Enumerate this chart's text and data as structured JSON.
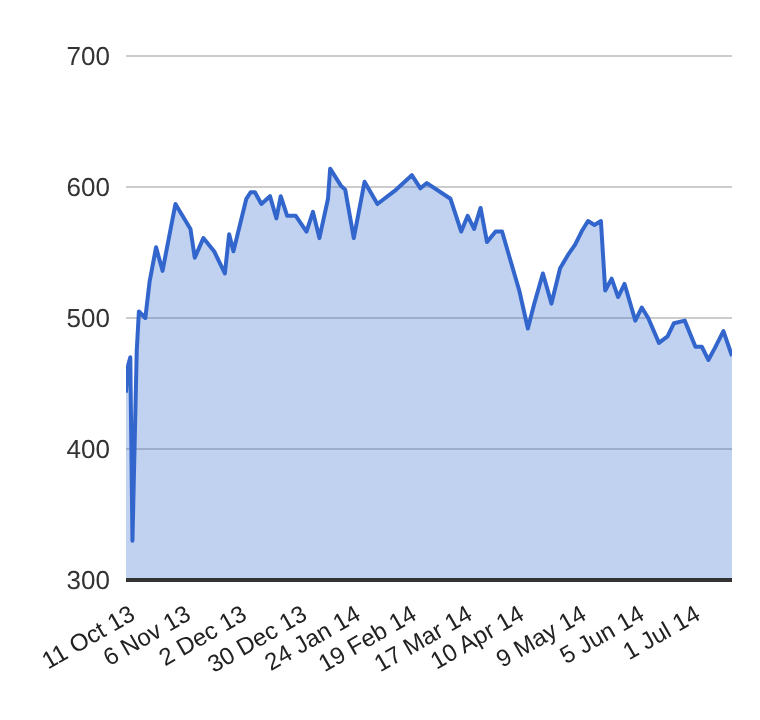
{
  "chart_data": {
    "type": "area",
    "x": [
      "2013-10-10",
      "2013-10-11",
      "2013-10-12",
      "2013-10-13",
      "2013-10-15",
      "2013-10-16",
      "2013-10-19",
      "2013-10-21",
      "2013-10-24",
      "2013-10-27",
      "2013-11-02",
      "2013-11-09",
      "2013-11-11",
      "2013-11-15",
      "2013-11-20",
      "2013-11-25",
      "2013-11-27",
      "2013-11-29",
      "2013-12-05",
      "2013-12-07",
      "2013-12-09",
      "2013-12-12",
      "2013-12-16",
      "2013-12-19",
      "2013-12-21",
      "2013-12-24",
      "2013-12-28",
      "2014-01-02",
      "2014-01-05",
      "2014-01-08",
      "2014-01-12",
      "2014-01-13",
      "2014-01-18",
      "2014-01-20",
      "2014-01-24",
      "2014-01-29",
      "2014-02-04",
      "2014-02-12",
      "2014-02-20",
      "2014-02-24",
      "2014-02-27",
      "2014-03-10",
      "2014-03-15",
      "2014-03-18",
      "2014-03-21",
      "2014-03-24",
      "2014-03-27",
      "2014-03-31",
      "2014-04-03",
      "2014-04-06",
      "2014-04-11",
      "2014-04-15",
      "2014-04-18",
      "2014-04-22",
      "2014-04-26",
      "2014-04-30",
      "2014-05-04",
      "2014-05-07",
      "2014-05-10",
      "2014-05-13",
      "2014-05-16",
      "2014-05-19",
      "2014-05-21",
      "2014-05-24",
      "2014-05-27",
      "2014-05-30",
      "2014-06-04",
      "2014-06-07",
      "2014-06-10",
      "2014-06-15",
      "2014-06-19",
      "2014-06-22",
      "2014-06-27",
      "2014-07-02",
      "2014-07-05",
      "2014-07-08",
      "2014-07-11",
      "2014-07-15",
      "2014-07-19"
    ],
    "series": [
      {
        "color": "#3366cc",
        "values": [
          443,
          464,
          470,
          330,
          475,
          505,
          500,
          528,
          554,
          536,
          587,
          568,
          546,
          561,
          551,
          534,
          564,
          551,
          591,
          596,
          596,
          587,
          593,
          576,
          593,
          578,
          578,
          566,
          581,
          561,
          591,
          614,
          601,
          598,
          561,
          604,
          587,
          597,
          609,
          599,
          603,
          591,
          566,
          578,
          568,
          584,
          558,
          566,
          566,
          549,
          521,
          492,
          511,
          534,
          511,
          538,
          549,
          556,
          566,
          574,
          571,
          574,
          521,
          530,
          516,
          526,
          498,
          508,
          500,
          481,
          486,
          496,
          498,
          478,
          478,
          468,
          477,
          490,
          471
        ]
      }
    ],
    "xlim": [
      "2013-10-10",
      "2014-07-19"
    ],
    "xticks": [
      {
        "value": "2013-10-11",
        "label": "11 Oct 13"
      },
      {
        "value": "2013-11-06",
        "label": "6 Nov 13"
      },
      {
        "value": "2013-12-02",
        "label": "2 Dec 13"
      },
      {
        "value": "2013-12-30",
        "label": "30 Dec 13"
      },
      {
        "value": "2014-01-24",
        "label": "24 Jan 14"
      },
      {
        "value": "2014-02-19",
        "label": "19 Feb 14"
      },
      {
        "value": "2014-03-17",
        "label": "17 Mar 14"
      },
      {
        "value": "2014-04-10",
        "label": "10 Apr 14"
      },
      {
        "value": "2014-05-09",
        "label": "9 May 14"
      },
      {
        "value": "2014-06-05",
        "label": "5 Jun 14"
      },
      {
        "value": "2014-07-01",
        "label": "1 Jul 14"
      }
    ],
    "ylim": [
      300,
      700
    ],
    "yticks": [
      300,
      400,
      500,
      600,
      700
    ],
    "grid": "y"
  }
}
